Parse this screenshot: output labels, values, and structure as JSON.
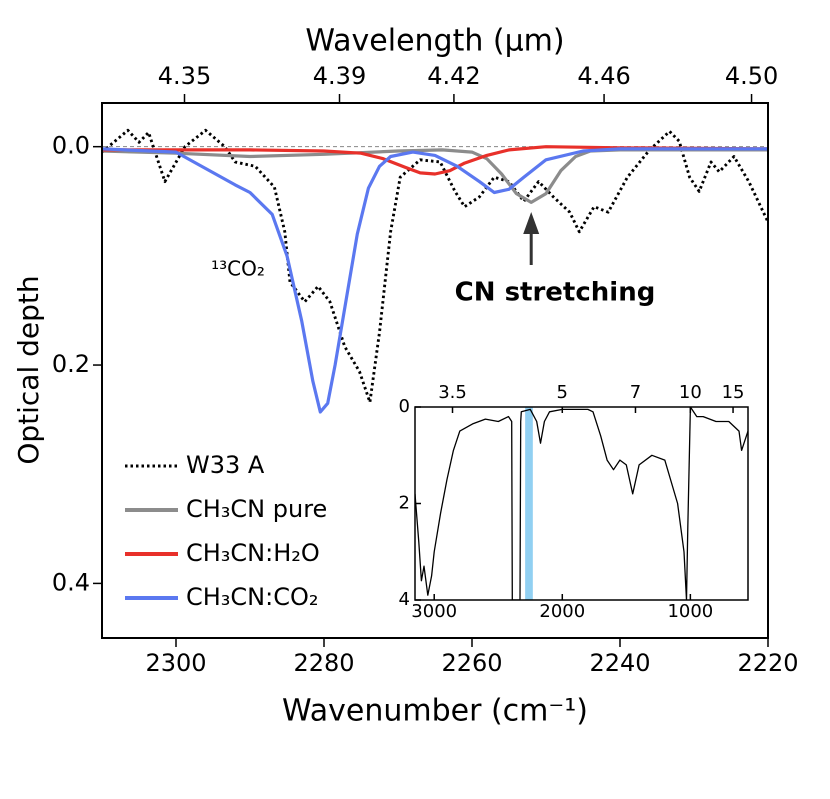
{
  "chart_data": [
    {
      "type": "line",
      "xlabel": "Wavenumber (cm⁻¹)",
      "x2label": "Wavelength (µm)",
      "ylabel": "Optical depth",
      "xlim": [
        2310,
        2220
      ],
      "xticks": [
        2300,
        2280,
        2260,
        2240,
        2220
      ],
      "x2ticks": [
        4.35,
        4.39,
        4.42,
        4.46,
        {
          "value": 4.5,
          "label": "4.50"
        }
      ],
      "ylim": [
        -0.04,
        0.45
      ],
      "yticks": [
        {
          "value": 0,
          "label": "0.0"
        },
        0.2,
        0.4
      ],
      "zero_line": true,
      "legend": "lower left",
      "annotations": [
        {
          "text": "¹³CO₂"
        },
        {
          "text": "CN stretching",
          "arrow_x": 2252
        }
      ],
      "series": [
        {
          "name": "W33 A",
          "color": "#000000",
          "style": "dotted",
          "x": [
            2310,
            2306.5,
            2305,
            2303.7,
            2301.5,
            2298.8,
            2296,
            2293.4,
            2292,
            2289.3,
            2286.7,
            2285.3,
            2284.6,
            2282.6,
            2280.8,
            2279.2,
            2277.2,
            2275.2,
            2273.8,
            2272.5,
            2271,
            2269.7,
            2267,
            2264.3,
            2262.3,
            2261,
            2259,
            2257,
            2255,
            2253,
            2251,
            2249,
            2246.8,
            2245.5,
            2243.5,
            2241.6,
            2239,
            2236,
            2233.3,
            2232,
            2230.6,
            2229.3,
            2227.7,
            2226.6,
            2224.6,
            2222.6,
            2220
          ],
          "values": [
            0.005,
            -0.015,
            -0.004,
            -0.013,
            0.032,
            0,
            -0.015,
            0,
            0.014,
            0.018,
            0.037,
            0.078,
            0.124,
            0.142,
            0.128,
            0.142,
            0.183,
            0.206,
            0.234,
            0.17,
            0.078,
            0.028,
            0.012,
            0.014,
            0.041,
            0.055,
            0.046,
            0.028,
            0.032,
            0.05,
            0.032,
            0.046,
            0.06,
            0.078,
            0.055,
            0.06,
            0.028,
            0.003,
            -0.014,
            -0.005,
            0.028,
            0.041,
            0.014,
            0.023,
            0.009,
            0.032,
            0.069
          ]
        },
        {
          "name": "CH₃CN pure",
          "color": "#8c8c8c",
          "style": "solid",
          "x": [
            2310,
            2300,
            2290,
            2280,
            2270,
            2264,
            2260,
            2258,
            2256,
            2254,
            2252,
            2250,
            2248,
            2246,
            2244,
            2240,
            2230,
            2220
          ],
          "values": [
            0.004,
            0.006,
            0.009,
            0.007,
            0.004,
            0.003,
            0.005,
            0.011,
            0.025,
            0.043,
            0.051,
            0.043,
            0.022,
            0.009,
            0.004,
            0.003,
            0.003,
            0.003
          ]
        },
        {
          "name": "CH₃CN:H₂O",
          "color": "#e8302a",
          "style": "solid",
          "x": [
            2310,
            2290,
            2280,
            2275,
            2272,
            2269,
            2267,
            2265,
            2263,
            2261,
            2258,
            2255,
            2250,
            2240,
            2220
          ],
          "values": [
            0.003,
            0.003,
            0.004,
            0.006,
            0.011,
            0.019,
            0.024,
            0.025,
            0.022,
            0.015,
            0.008,
            0.003,
            0.0,
            0.001,
            0.002
          ]
        },
        {
          "name": "CH₃CN:CO₂",
          "color": "#5b78f0",
          "style": "solid",
          "x": [
            2310,
            2300,
            2296,
            2292,
            2290,
            2287,
            2285,
            2283,
            2281.5,
            2280.5,
            2279.5,
            2278.5,
            2277,
            2275.5,
            2274,
            2272.5,
            2271,
            2268,
            2265,
            2262,
            2259,
            2257,
            2255,
            2253,
            2250,
            2245,
            2240,
            2220
          ],
          "values": [
            0.002,
            0.005,
            0.02,
            0.035,
            0.042,
            0.062,
            0.1,
            0.16,
            0.215,
            0.243,
            0.235,
            0.2,
            0.14,
            0.08,
            0.038,
            0.018,
            0.009,
            0.005,
            0.008,
            0.018,
            0.032,
            0.042,
            0.039,
            0.028,
            0.012,
            0.004,
            0.002,
            0.002
          ]
        }
      ]
    },
    {
      "type": "line",
      "xlim": [
        3150,
        550
      ],
      "xticks": [
        3000,
        2000,
        1000
      ],
      "x2ticks": [
        3.5,
        5,
        7,
        10,
        15
      ],
      "ylim": [
        0,
        4
      ],
      "yticks": [
        0,
        2,
        4
      ],
      "highlight": [
        2290,
        2230
      ],
      "highlight_color": "#7ec8f0",
      "series": [
        {
          "color": "#000000",
          "style": "solid",
          "x": [
            3150,
            3120,
            3100,
            3080,
            3050,
            3020,
            3000,
            2950,
            2900,
            2850,
            2800,
            2700,
            2600,
            2500,
            2420,
            2395,
            2390,
            2330,
            2325,
            2320,
            2250,
            2200,
            2170,
            2140,
            2100,
            2000,
            1900,
            1800,
            1760,
            1700,
            1650,
            1600,
            1550,
            1500,
            1450,
            1400,
            1300,
            1200,
            1100,
            1050,
            1030,
            1020,
            1000,
            950,
            900,
            800,
            700,
            620,
            600,
            550
          ],
          "values": [
            1.8,
            2.8,
            3.6,
            3.3,
            3.9,
            3.5,
            3.0,
            2.2,
            1.5,
            0.9,
            0.5,
            0.35,
            0.25,
            0.3,
            0.2,
            0.3,
            4.0,
            4.0,
            0.3,
            0.1,
            0.05,
            0.3,
            0.75,
            0.3,
            0.1,
            0.05,
            0.05,
            0.05,
            0.1,
            0.6,
            1.1,
            1.3,
            1.1,
            1.2,
            1.8,
            1.2,
            1.0,
            1.1,
            2.0,
            3.0,
            4.0,
            2.5,
            0.0,
            0.2,
            0.2,
            0.3,
            0.3,
            0.5,
            0.9,
            0.5
          ]
        }
      ]
    }
  ]
}
